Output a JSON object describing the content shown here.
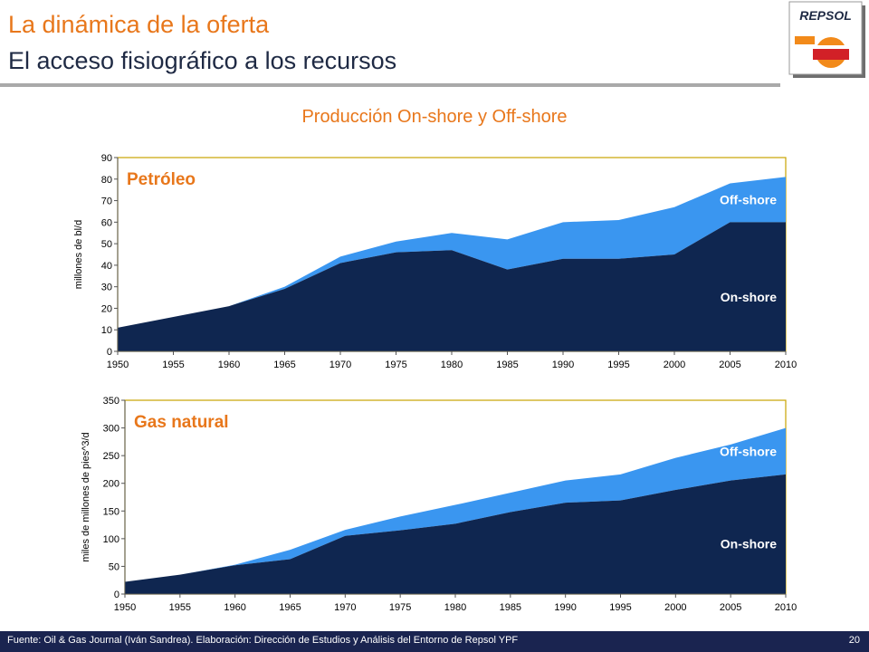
{
  "header": {
    "title": "La dinámica de la oferta",
    "subtitle": "El acceso fisiográfico a los recursos",
    "logo_text": "REPSOL"
  },
  "chart_heading": "Producción On-shore y Off-shore",
  "colors": {
    "onshore": "#0f2650",
    "offshore": "#3a96f0",
    "title_orange": "#e8771b",
    "frame": "#c9a400"
  },
  "chart_data": [
    {
      "type": "area",
      "stacked": true,
      "title": "Petróleo",
      "xlabel": "",
      "ylabel": "millones de bl/d",
      "x": [
        1950,
        1955,
        1960,
        1965,
        1970,
        1975,
        1980,
        1985,
        1990,
        1995,
        2000,
        2005,
        2010
      ],
      "xticks": [
        1950,
        1955,
        1960,
        1965,
        1970,
        1975,
        1980,
        1985,
        1990,
        1995,
        2000,
        2005,
        2010
      ],
      "ylim": [
        0,
        90
      ],
      "yticks": [
        0,
        10,
        20,
        30,
        40,
        50,
        60,
        70,
        80,
        90
      ],
      "grid": false,
      "series": [
        {
          "name": "On-shore",
          "values": [
            11,
            16,
            21,
            29,
            41,
            46,
            47,
            38,
            43,
            43,
            45,
            60,
            60
          ]
        },
        {
          "name": "Off-shore",
          "values": [
            0,
            0,
            0,
            1,
            3,
            5,
            8,
            14,
            17,
            18,
            22,
            18,
            21
          ]
        }
      ]
    },
    {
      "type": "area",
      "stacked": true,
      "title": "Gas natural",
      "xlabel": "",
      "ylabel": "miles de millones de pies^3/d",
      "x": [
        1950,
        1955,
        1960,
        1965,
        1970,
        1975,
        1980,
        1985,
        1990,
        1995,
        2000,
        2005,
        2010
      ],
      "xticks": [
        1950,
        1955,
        1960,
        1965,
        1970,
        1975,
        1980,
        1985,
        1990,
        1995,
        2000,
        2005,
        2010
      ],
      "ylim": [
        0,
        350
      ],
      "yticks": [
        0,
        50,
        100,
        150,
        200,
        250,
        300,
        350
      ],
      "grid": false,
      "series": [
        {
          "name": "On-shore",
          "values": [
            22,
            35,
            52,
            63,
            105,
            115,
            127,
            148,
            165,
            169,
            188,
            205,
            216
          ]
        },
        {
          "name": "Off-shore",
          "values": [
            0,
            0,
            1,
            17,
            11,
            25,
            34,
            35,
            40,
            47,
            58,
            65,
            84
          ]
        }
      ]
    }
  ],
  "footer": {
    "source": "Fuente: Oil & Gas Journal (Iván Sandrea). Elaboración: Dirección de Estudios y Análisis del Entorno de Repsol YPF",
    "page_number": "20"
  }
}
